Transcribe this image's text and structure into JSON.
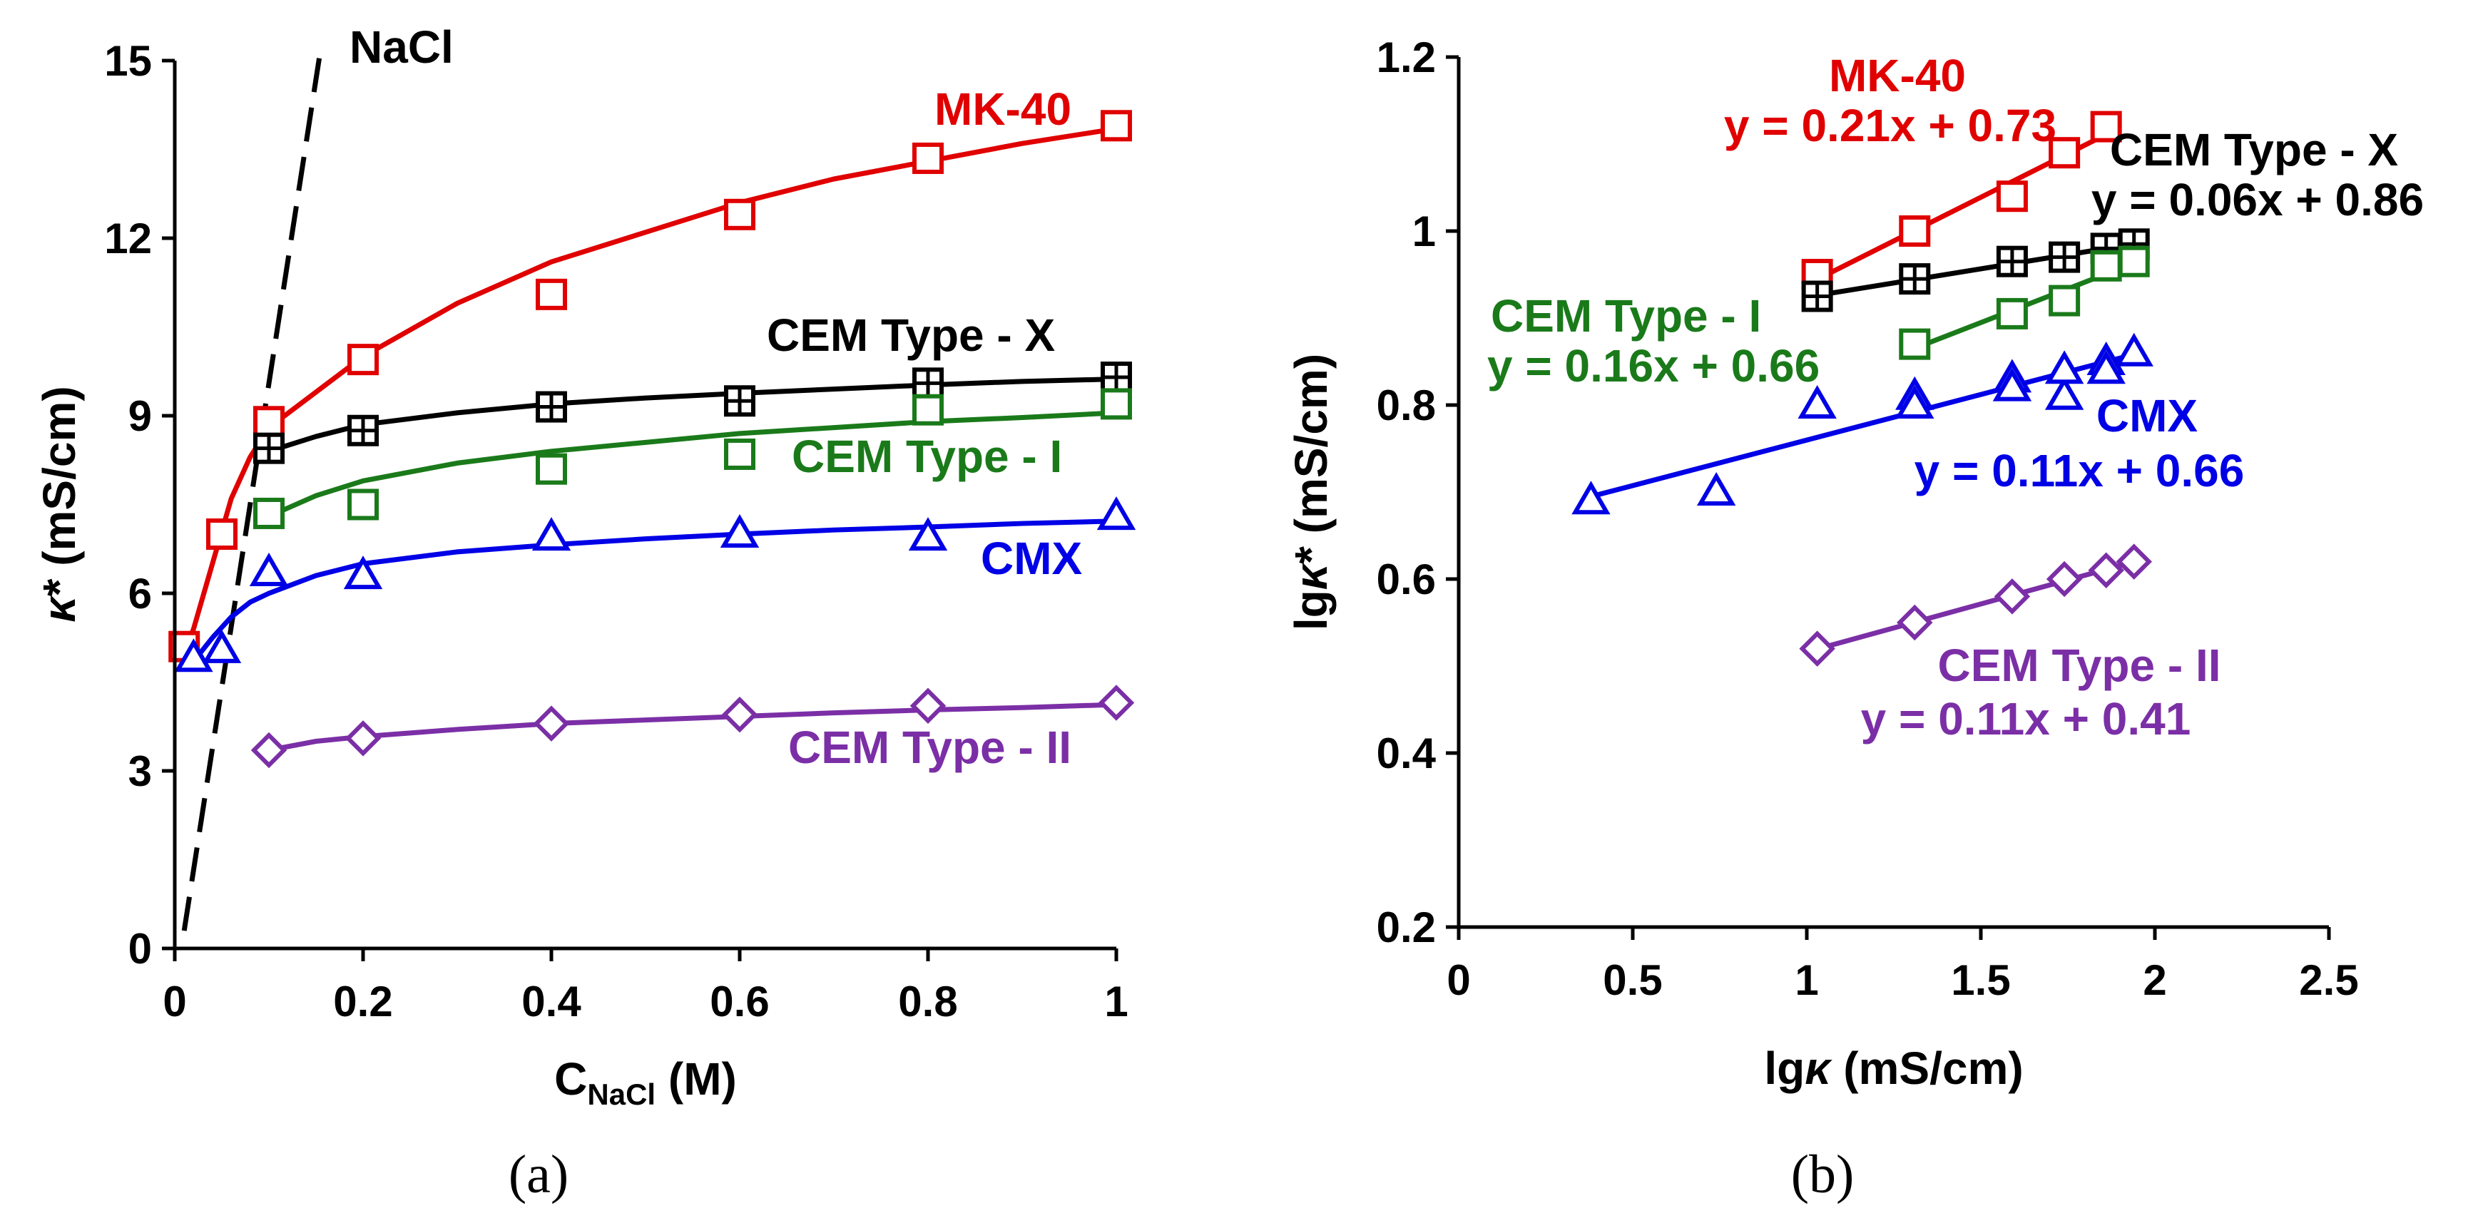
{
  "chart_data": [
    {
      "type": "line",
      "panel": "(a)",
      "caption": "(a)",
      "xlabel_main": "C",
      "xlabel_sub": "NaCl",
      "xlabel_unit": " (M)",
      "ylabel": "κ* (mS/cm)",
      "xlim": [
        0,
        1
      ],
      "ylim": [
        0,
        15
      ],
      "xticks": [
        0,
        0.2,
        0.4,
        0.6,
        0.8,
        1
      ],
      "xtick_labels": [
        "0",
        "0.2",
        "0.4",
        "0.6",
        "0.8",
        "1"
      ],
      "yticks": [
        0,
        3,
        6,
        9,
        12,
        15
      ],
      "ytick_labels": [
        "0",
        "3",
        "6",
        "9",
        "12",
        "15"
      ],
      "reference_line": {
        "name": "NaCl",
        "label": "NaCl",
        "style": "dashed",
        "x": [
          0.01,
          0.155
        ],
        "y": [
          0.3,
          15.2
        ]
      },
      "series": [
        {
          "name": "MK-40",
          "label": "MK-40",
          "color": "#e00000",
          "marker": "square",
          "x": [
            0.01,
            0.05,
            0.1,
            0.2,
            0.4,
            0.6,
            0.8,
            1
          ],
          "y": [
            5.1,
            7.0,
            8.9,
            9.95,
            11.05,
            12.4,
            13.35,
            13.9
          ],
          "fit_x": [
            0.01,
            0.02,
            0.04,
            0.06,
            0.08,
            0.1,
            0.15,
            0.2,
            0.3,
            0.4,
            0.5,
            0.6,
            0.7,
            0.8,
            0.9,
            1
          ],
          "fit_y": [
            5.0,
            5.4,
            6.5,
            7.6,
            8.3,
            8.8,
            9.4,
            10.0,
            10.9,
            11.6,
            12.1,
            12.6,
            13.0,
            13.3,
            13.6,
            13.85
          ]
        },
        {
          "name": "CEM Type - X",
          "label": "CEM Type - X",
          "color": "#000000",
          "marker": "square-plus",
          "x": [
            0.1,
            0.2,
            0.4,
            0.6,
            0.8,
            1
          ],
          "y": [
            8.45,
            8.75,
            9.15,
            9.25,
            9.55,
            9.65
          ],
          "fit_x": [
            0.1,
            0.15,
            0.2,
            0.3,
            0.4,
            0.5,
            0.6,
            0.7,
            0.8,
            0.9,
            1
          ],
          "fit_y": [
            8.4,
            8.65,
            8.85,
            9.05,
            9.2,
            9.3,
            9.38,
            9.45,
            9.52,
            9.58,
            9.62
          ]
        },
        {
          "name": "CEM Type - I",
          "label": "CEM Type - I",
          "color": "#1a7a1a",
          "marker": "square",
          "x": [
            0.1,
            0.2,
            0.4,
            0.6,
            0.8,
            1
          ],
          "y": [
            7.35,
            7.5,
            8.1,
            8.35,
            9.1,
            9.2
          ],
          "fit_x": [
            0.1,
            0.15,
            0.2,
            0.3,
            0.4,
            0.5,
            0.6,
            0.7,
            0.8,
            0.9,
            1
          ],
          "fit_y": [
            7.3,
            7.65,
            7.9,
            8.2,
            8.4,
            8.55,
            8.7,
            8.8,
            8.9,
            8.97,
            9.05
          ]
        },
        {
          "name": "CMX",
          "label": "CMX",
          "color": "#0000e6",
          "marker": "triangle",
          "x": [
            0.02,
            0.05,
            0.1,
            0.2,
            0.4,
            0.6,
            0.8,
            1
          ],
          "y": [
            4.9,
            5.05,
            6.35,
            6.3,
            6.95,
            7.0,
            6.95,
            7.3
          ],
          "fit_x": [
            0.02,
            0.04,
            0.06,
            0.08,
            0.1,
            0.15,
            0.2,
            0.3,
            0.4,
            0.5,
            0.6,
            0.7,
            0.8,
            0.9,
            1
          ],
          "fit_y": [
            4.85,
            5.25,
            5.6,
            5.85,
            6.0,
            6.3,
            6.5,
            6.7,
            6.82,
            6.92,
            7.0,
            7.07,
            7.12,
            7.18,
            7.22
          ]
        },
        {
          "name": "CEM Type - II",
          "label": "CEM Type - II",
          "color": "#7b2fa6",
          "marker": "diamond",
          "x": [
            0.1,
            0.2,
            0.4,
            0.6,
            0.8,
            1
          ],
          "y": [
            3.35,
            3.55,
            3.8,
            3.95,
            4.1,
            4.15
          ],
          "fit_x": [
            0.1,
            0.15,
            0.2,
            0.3,
            0.4,
            0.5,
            0.6,
            0.7,
            0.8,
            0.9,
            1
          ],
          "fit_y": [
            3.35,
            3.5,
            3.58,
            3.7,
            3.8,
            3.86,
            3.92,
            3.98,
            4.03,
            4.07,
            4.12
          ]
        }
      ]
    },
    {
      "type": "scatter",
      "panel": "(b)",
      "caption": "(b)",
      "xlabel": "lgκ (mS/cm)",
      "ylabel": "lgκ* (mS/cm)",
      "xlim": [
        0,
        2.5
      ],
      "ylim": [
        0.2,
        1.2
      ],
      "xticks": [
        0,
        0.5,
        1,
        1.5,
        2,
        2.5
      ],
      "xtick_labels": [
        "0",
        "0.5",
        "1",
        "1.5",
        "2",
        "2.5"
      ],
      "yticks": [
        0.2,
        0.4,
        0.6,
        0.8,
        1,
        1.2
      ],
      "ytick_labels": [
        "0.2",
        "0.4",
        "0.6",
        "0.8",
        "1",
        "1.2"
      ],
      "series": [
        {
          "name": "MK-40",
          "label": "MK-40",
          "equation": "y = 0.21x + 0.73",
          "color": "#e00000",
          "marker": "square",
          "x": [
            1.03,
            1.31,
            1.59,
            1.74,
            1.86
          ],
          "y": [
            0.95,
            1.0,
            1.04,
            1.09,
            1.12
          ],
          "fit_x": [
            1.03,
            1.88
          ]
        },
        {
          "name": "CEM Type - X",
          "label": "CEM Type - X",
          "equation": "y = 0.06x + 0.86",
          "color": "#000000",
          "marker": "square-plus",
          "x": [
            1.03,
            1.31,
            1.59,
            1.74,
            1.86,
            1.94
          ],
          "y": [
            0.925,
            0.945,
            0.965,
            0.97,
            0.98,
            0.985
          ],
          "fit_x": [
            1.03,
            1.95
          ]
        },
        {
          "name": "CEM Type - I",
          "label": "CEM Type - I",
          "equation": "y = 0.16x + 0.66",
          "color": "#1a7a1a",
          "marker": "square",
          "x": [
            1.31,
            1.59,
            1.74,
            1.86,
            1.94
          ],
          "y": [
            0.87,
            0.905,
            0.92,
            0.96,
            0.965
          ],
          "fit_x": [
            1.31,
            1.95
          ]
        },
        {
          "name": "CMX",
          "label": "CMX",
          "equation": "y = 0.11x + 0.66",
          "color": "#0000e6",
          "marker": "triangle",
          "x": [
            0.38,
            0.74,
            1.03,
            1.31,
            1.31,
            1.59,
            1.59,
            1.74,
            1.74,
            1.86,
            1.86,
            1.94
          ],
          "y": [
            0.69,
            0.7,
            0.8,
            0.81,
            0.8,
            0.83,
            0.82,
            0.81,
            0.84,
            0.85,
            0.84,
            0.86
          ],
          "fit_x": [
            0.38,
            1.95
          ]
        },
        {
          "name": "CEM Type - II",
          "label": "CEM Type - II",
          "equation": "y = 0.11x + 0.41",
          "color": "#7b2fa6",
          "marker": "diamond",
          "x": [
            1.03,
            1.31,
            1.59,
            1.74,
            1.86,
            1.94
          ],
          "y": [
            0.52,
            0.55,
            0.58,
            0.6,
            0.61,
            0.62
          ],
          "fit_x": [
            1.03,
            1.95
          ]
        }
      ]
    }
  ]
}
